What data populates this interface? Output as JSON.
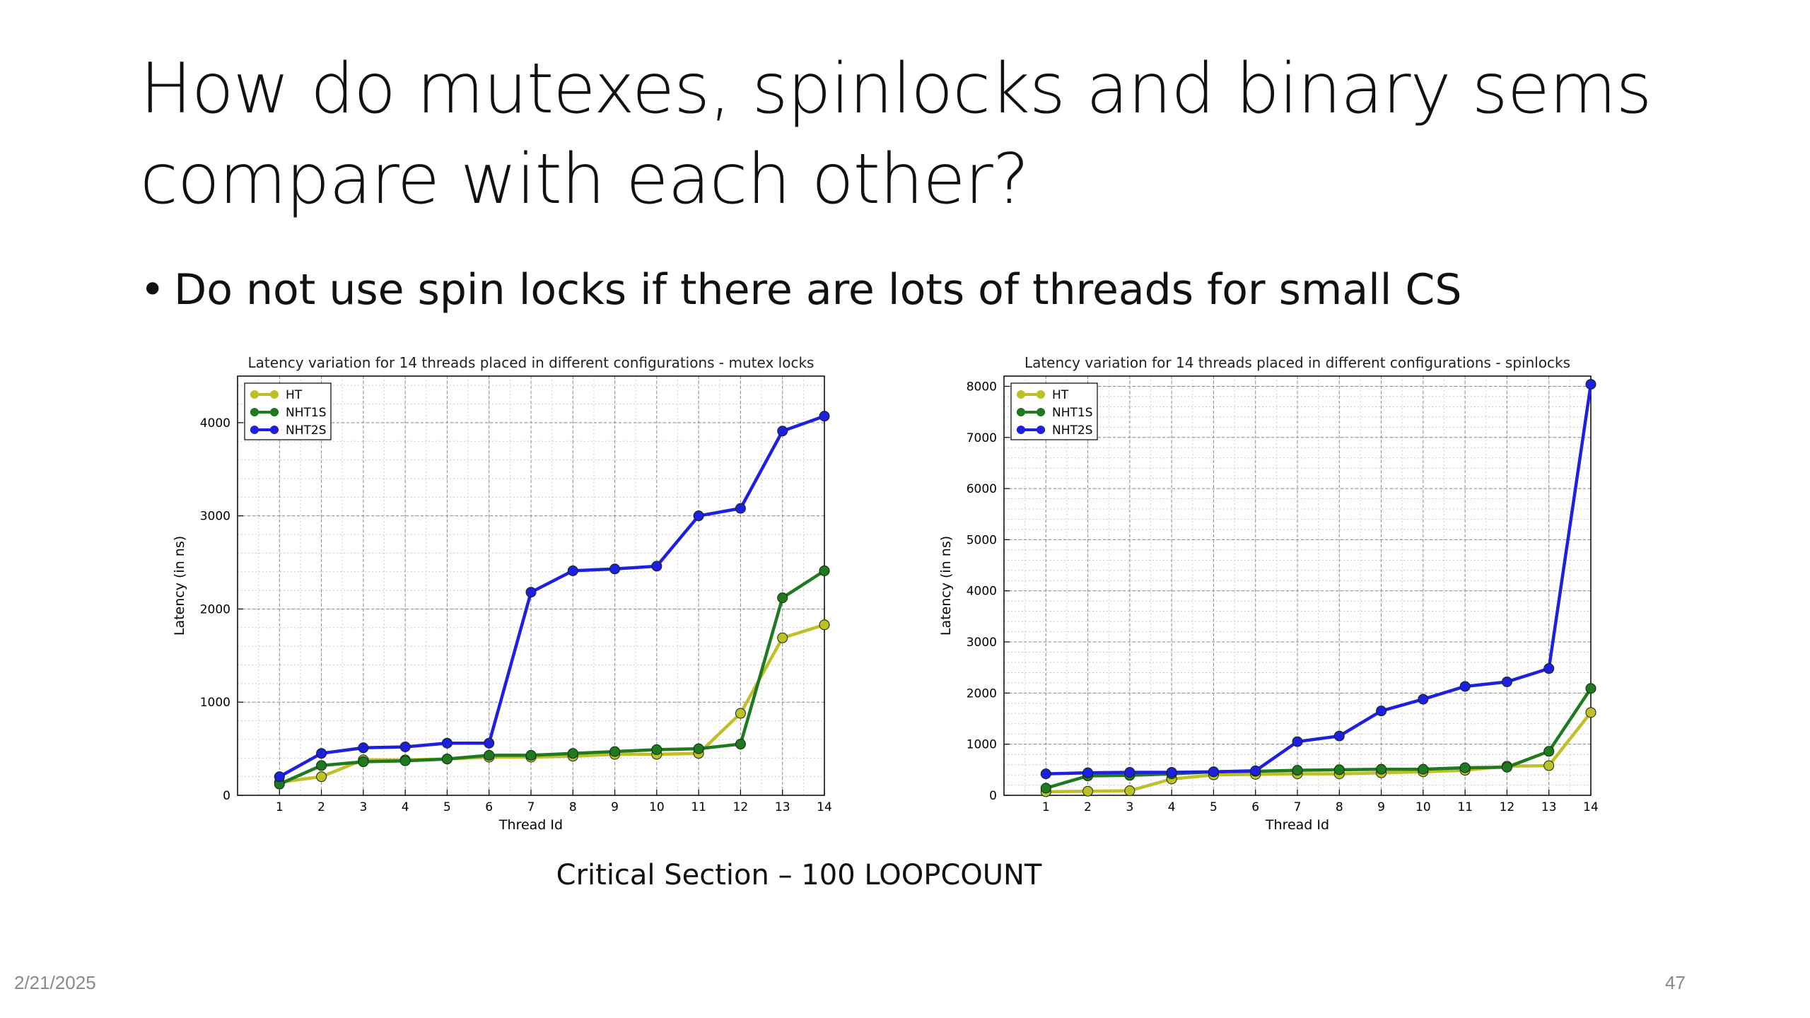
{
  "slide": {
    "title_line1": "How do mutexes, spinlocks and binary sems",
    "title_line2": "compare with each other?",
    "bullet": "Do not use spin locks if there are lots of threads for small CS",
    "caption": "Critical Section – 100 LOOPCOUNT",
    "date": "2/21/2025",
    "page_number": "47"
  },
  "chart_data": [
    {
      "type": "line",
      "title": "Latency variation for 14 threads placed in different configurations - mutex locks",
      "xlabel": "Thread Id",
      "ylabel": "Latency (in ns)",
      "x": [
        1,
        2,
        3,
        4,
        5,
        6,
        7,
        8,
        9,
        10,
        11,
        12,
        13,
        14
      ],
      "xlim": [
        0,
        14
      ],
      "ylim": [
        0,
        4500
      ],
      "yticks": [
        0,
        1000,
        2000,
        3000,
        4000
      ],
      "grid": true,
      "legend_position": "top-left",
      "series": [
        {
          "name": "HT",
          "color": "#bfbf26",
          "values": [
            140,
            200,
            380,
            380,
            390,
            410,
            410,
            420,
            440,
            440,
            450,
            880,
            1690,
            1830
          ]
        },
        {
          "name": "NHT1S",
          "color": "#1f7a1f",
          "values": [
            120,
            320,
            360,
            370,
            390,
            430,
            430,
            450,
            470,
            490,
            500,
            550,
            2120,
            2410
          ]
        },
        {
          "name": "NHT2S",
          "color": "#1f1fe0",
          "values": [
            200,
            450,
            510,
            520,
            560,
            560,
            2180,
            2410,
            2430,
            2460,
            3000,
            3080,
            3910,
            4070
          ]
        }
      ]
    },
    {
      "type": "line",
      "title": "Latency variation for 14 threads placed in different configurations - spinlocks",
      "xlabel": "Thread Id",
      "ylabel": "Latency (in ns)",
      "x": [
        1,
        2,
        3,
        4,
        5,
        6,
        7,
        8,
        9,
        10,
        11,
        12,
        13,
        14
      ],
      "xlim": [
        0,
        14
      ],
      "ylim": [
        0,
        8200
      ],
      "yticks": [
        0,
        1000,
        2000,
        3000,
        4000,
        5000,
        6000,
        7000,
        8000
      ],
      "grid": true,
      "legend_position": "top-left",
      "series": [
        {
          "name": "HT",
          "color": "#bfbf26",
          "values": [
            70,
            80,
            90,
            320,
            400,
            410,
            420,
            420,
            440,
            460,
            490,
            570,
            580,
            1620
          ]
        },
        {
          "name": "NHT1S",
          "color": "#1f7a1f",
          "values": [
            140,
            380,
            390,
            420,
            460,
            470,
            490,
            500,
            510,
            510,
            540,
            550,
            860,
            2090
          ]
        },
        {
          "name": "NHT2S",
          "color": "#1f1fe0",
          "values": [
            420,
            440,
            450,
            450,
            460,
            480,
            1050,
            1160,
            1650,
            1880,
            2130,
            2220,
            2480,
            8040
          ]
        }
      ]
    }
  ]
}
